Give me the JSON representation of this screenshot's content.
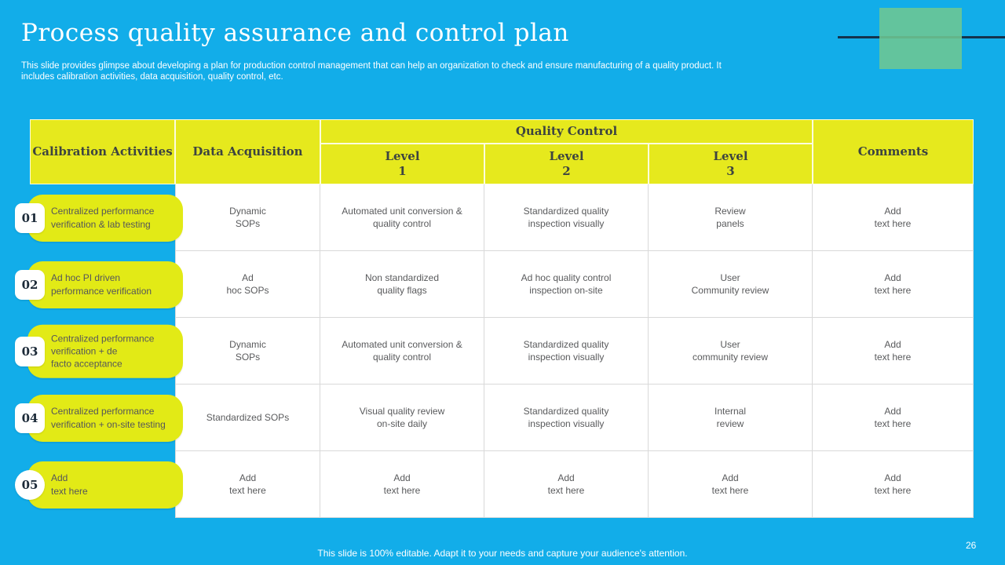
{
  "slide": {
    "title": "Process quality assurance and control plan",
    "subtitle": "This slide provides glimpse about developing a plan for production control management that can help an organization to check and ensure manufacturing of a quality product. It\nincludes calibration activities, data acquisition, quality control, etc.",
    "footer": "This slide is 100% editable. Adapt it to your needs and capture your audience's attention.",
    "page_number": "26"
  },
  "colors": {
    "background": "#12ade9",
    "table_header_yellow": "#e6e91d",
    "label_pill_yellow": "#e2ea16",
    "green_accent_square": "#6ec792",
    "dark_accent_line": "#14334d",
    "header_text": "#3d4440",
    "cell_text": "#595a5c",
    "grid_line": "#d9d9d9"
  },
  "table": {
    "headers": {
      "calibration": "Calibration Activities",
      "data_acquisition": "Data Acquisition",
      "quality_control": "Quality Control",
      "level1": "Level\n1",
      "level2": "Level\n2",
      "level3": "Level\n3",
      "comments": "Comments"
    },
    "rows": [
      {
        "num": "01",
        "activity": "Centralized  performance\nverification  & lab testing",
        "data_acquisition": "Dynamic\nSOPs",
        "level1": "Automated unit conversion  &\nquality control",
        "level2": "Standardized  quality\ninspection visually",
        "level3": "Review\npanels",
        "comments": "Add\ntext here"
      },
      {
        "num": "02",
        "activity": "Ad hoc PI driven\nperformance  verification",
        "data_acquisition": "Ad\nhoc SOPs",
        "level1": "Non  standardized\nquality flags",
        "level2": "Ad hoc quality control\ninspection on-site",
        "level3": "User\nCommunity review",
        "comments": "Add\ntext here"
      },
      {
        "num": "03",
        "activity": "Centralized  performance\nverification  + de\nfacto acceptance",
        "data_acquisition": "Dynamic\nSOPs",
        "level1": "Automated unit conversion  &\nquality control",
        "level2": "Standardized  quality\ninspection visually",
        "level3": "User\ncommunity review",
        "comments": "Add\ntext here"
      },
      {
        "num": "04",
        "activity": "Centralized  performance\nverification  + on-site testing",
        "data_acquisition": "Standardized  SOPs",
        "level1": "Visual quality review\non-site daily",
        "level2": "Standardized  quality\ninspection visually",
        "level3": "Internal\nreview",
        "comments": "Add\ntext here"
      },
      {
        "num": "05",
        "activity": "Add\ntext here",
        "data_acquisition": "Add\ntext here",
        "level1": "Add\ntext here",
        "level2": "Add\ntext here",
        "level3": "Add\ntext here",
        "comments": "Add\ntext here"
      }
    ]
  }
}
